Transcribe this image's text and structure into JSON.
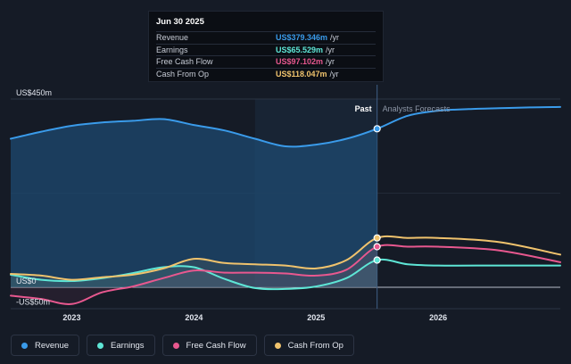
{
  "tooltip": {
    "date": "Jun 30 2025",
    "rows": [
      {
        "label": "Revenue",
        "value": "US$379.346m",
        "unit": "/yr",
        "color": "#3a9bea"
      },
      {
        "label": "Earnings",
        "value": "US$65.529m",
        "unit": "/yr",
        "color": "#5ee6d6"
      },
      {
        "label": "Free Cash Flow",
        "value": "US$97.102m",
        "unit": "/yr",
        "color": "#e8588f"
      },
      {
        "label": "Cash From Op",
        "value": "US$118.047m",
        "unit": "/yr",
        "color": "#f0c36d"
      }
    ]
  },
  "legend": [
    {
      "label": "Revenue",
      "color": "#3a9bea"
    },
    {
      "label": "Earnings",
      "color": "#5ee6d6"
    },
    {
      "label": "Free Cash Flow",
      "color": "#e8588f"
    },
    {
      "label": "Cash From Op",
      "color": "#f0c36d"
    }
  ],
  "chart_data": {
    "type": "line",
    "y_tick_labels": [
      "US$450m",
      "US$0",
      "-US$50m"
    ],
    "ylim": [
      -50,
      450
    ],
    "xlim": [
      2022.5,
      2027.0
    ],
    "x_tick_labels": [
      "2023",
      "2024",
      "2025",
      "2026"
    ],
    "x_ticks": [
      2023,
      2024,
      2025,
      2026
    ],
    "past_label": "Past",
    "forecast_label": "Analysts Forecasts",
    "divider_x": 2025.5,
    "past_shade_start": 2024.5,
    "series": [
      {
        "name": "Revenue",
        "color": "#3a9bea",
        "x": [
          2022.5,
          2022.75,
          2023.0,
          2023.25,
          2023.5,
          2023.75,
          2024.0,
          2024.25,
          2024.5,
          2024.75,
          2025.0,
          2025.25,
          2025.5,
          2025.75,
          2026.0,
          2026.25,
          2026.5,
          2026.75,
          2027.0
        ],
        "y": [
          355,
          372,
          386,
          394,
          398,
          402,
          388,
          375,
          355,
          337,
          341,
          355,
          379,
          410,
          422,
          426,
          428,
          430,
          431
        ]
      },
      {
        "name": "Earnings",
        "color": "#5ee6d6",
        "x": [
          2022.5,
          2022.75,
          2023.0,
          2023.25,
          2023.5,
          2023.75,
          2024.0,
          2024.25,
          2024.5,
          2024.75,
          2025.0,
          2025.25,
          2025.5,
          2025.75,
          2026.0,
          2026.5,
          2027.0
        ],
        "y": [
          30,
          18,
          15,
          22,
          34,
          48,
          48,
          20,
          -2,
          -4,
          2,
          22,
          65,
          55,
          52,
          52,
          52
        ]
      },
      {
        "name": "Free Cash Flow",
        "color": "#e8588f",
        "x": [
          2022.5,
          2022.75,
          2023.0,
          2023.25,
          2023.5,
          2023.75,
          2024.0,
          2024.25,
          2024.5,
          2024.75,
          2025.0,
          2025.25,
          2025.5,
          2025.75,
          2026.0,
          2026.5,
          2027.0
        ],
        "y": [
          -20,
          -28,
          -40,
          -12,
          2,
          22,
          40,
          35,
          35,
          33,
          28,
          42,
          97,
          97,
          97,
          88,
          60
        ]
      },
      {
        "name": "Cash From Op",
        "color": "#f0c36d",
        "x": [
          2022.5,
          2022.75,
          2023.0,
          2023.25,
          2023.5,
          2023.75,
          2024.0,
          2024.25,
          2024.5,
          2024.75,
          2025.0,
          2025.25,
          2025.5,
          2025.75,
          2026.0,
          2026.5,
          2027.0
        ],
        "y": [
          32,
          28,
          18,
          24,
          30,
          45,
          68,
          58,
          55,
          52,
          45,
          65,
          118,
          118,
          118,
          108,
          78
        ]
      }
    ]
  }
}
